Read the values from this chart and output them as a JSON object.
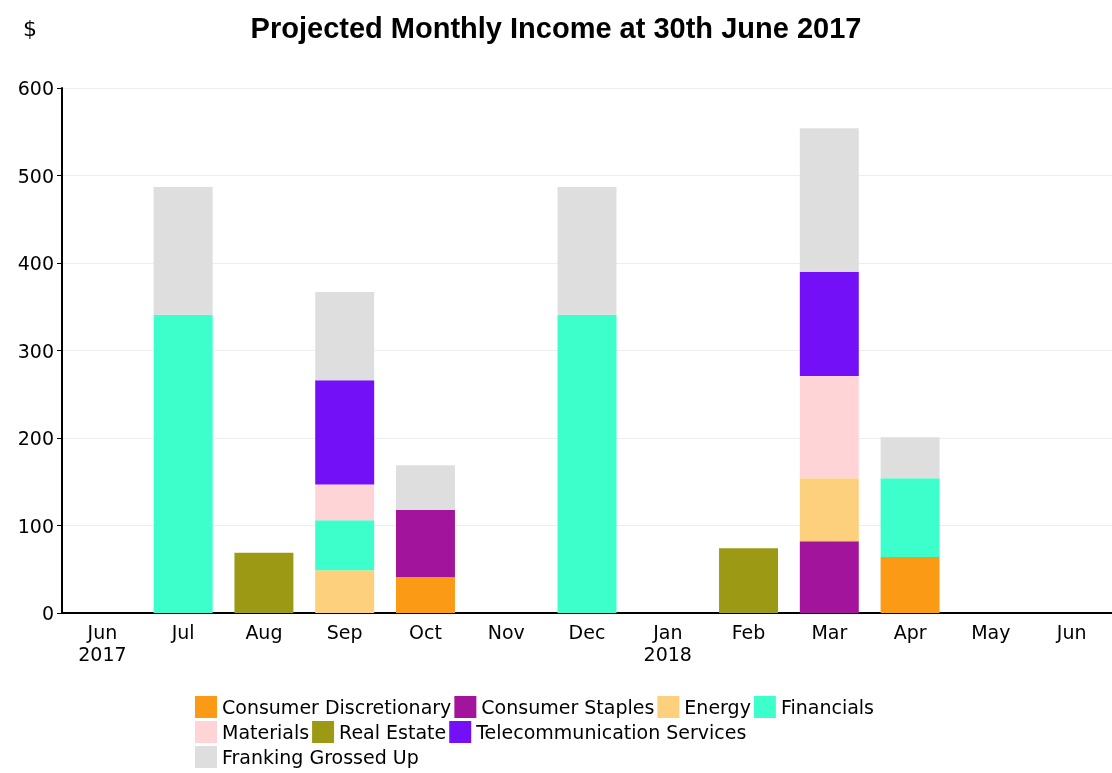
{
  "chart_data": {
    "type": "bar",
    "title": "Projected Monthly Income at 30th June 2017",
    "ylabel": "$",
    "categories": [
      "Jun\n2017",
      "Jul",
      "Aug",
      "Sep",
      "Oct",
      "Nov",
      "Dec",
      "Jan\n2018",
      "Feb",
      "Mar",
      "Apr",
      "May",
      "Jun"
    ],
    "stacked": true,
    "ylim": [
      0,
      600
    ],
    "yticks": [
      0,
      100,
      200,
      300,
      400,
      500,
      600
    ],
    "grid": "y",
    "legend": "bottom",
    "series": [
      {
        "name": "Consumer Discretionary",
        "color": "#fb9a14",
        "values": [
          null,
          null,
          null,
          null,
          41,
          null,
          null,
          null,
          null,
          null,
          64,
          null,
          null
        ]
      },
      {
        "name": "Consumer Staples",
        "color": "#a3149c",
        "values": [
          null,
          null,
          null,
          null,
          77,
          null,
          null,
          null,
          null,
          82,
          null,
          null,
          null
        ]
      },
      {
        "name": "Energy",
        "color": "#fdd07e",
        "values": [
          null,
          null,
          null,
          49,
          null,
          null,
          null,
          null,
          null,
          72,
          null,
          null,
          null
        ]
      },
      {
        "name": "Financials",
        "color": "#3dffcc",
        "values": [
          null,
          341,
          null,
          57,
          null,
          null,
          341,
          null,
          null,
          null,
          90,
          null,
          null
        ]
      },
      {
        "name": "Materials",
        "color": "#ffd4d6",
        "values": [
          null,
          null,
          null,
          41,
          null,
          null,
          null,
          null,
          null,
          117,
          null,
          null,
          null
        ]
      },
      {
        "name": "Real Estate",
        "color": "#9c9a14",
        "values": [
          null,
          null,
          69,
          null,
          null,
          null,
          null,
          null,
          74,
          null,
          null,
          null,
          null
        ]
      },
      {
        "name": "Telecommunication Services",
        "color": "#7310f8",
        "values": [
          null,
          null,
          null,
          119,
          null,
          null,
          null,
          null,
          null,
          119,
          null,
          null,
          null
        ]
      },
      {
        "name": "Franking Grossed Up",
        "color": "#dedede",
        "values": [
          null,
          146,
          null,
          101,
          51,
          null,
          146,
          null,
          null,
          164,
          47,
          null,
          null
        ]
      }
    ]
  }
}
